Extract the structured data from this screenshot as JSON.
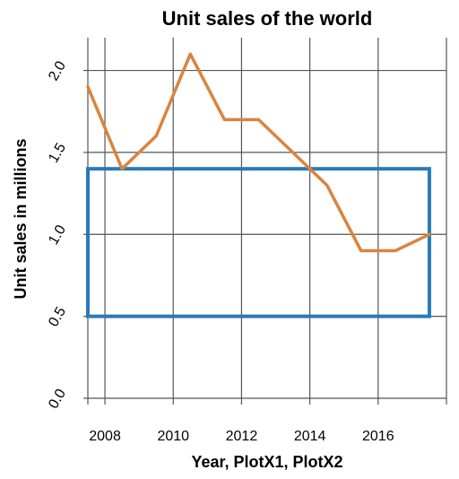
{
  "chart_data": {
    "type": "line",
    "title": "Unit sales of the world",
    "xlabel": "Year, PlotX1, PlotX2",
    "ylabel": "Unit sales in millions",
    "xlim": [
      2007.5,
      2018
    ],
    "ylim": [
      0,
      2.2
    ],
    "x_ticks": [
      2008,
      2010,
      2012,
      2014,
      2016
    ],
    "x_tick_labels": [
      "2008",
      "2010",
      "2012",
      "2014",
      "2016"
    ],
    "x_gridlines": [
      2008,
      2010,
      2012,
      2014,
      2016,
      2018
    ],
    "y_ticks": [
      0,
      0.5,
      1,
      1.5,
      2
    ],
    "y_tick_labels": [
      "0.0",
      "0.5",
      "1.0",
      "1.5",
      "2.0"
    ],
    "grid": true,
    "series": [
      {
        "x": [
          2007.5,
          2008.5,
          2009.5,
          2010.5,
          2011.5,
          2012.5,
          2013.5,
          2014.5,
          2015.5,
          2016.5,
          2017.5
        ],
        "values": [
          1.9,
          1.4,
          1.6,
          2.1,
          1.7,
          1.7,
          1.5,
          1.3,
          0.9,
          0.9,
          1.0
        ],
        "color": "#d9843f"
      }
    ],
    "annotations": [
      {
        "type": "rectangle",
        "x": [
          2007.5,
          2017.5
        ],
        "y": [
          0.5,
          1.4
        ],
        "color": "#2a7ab8"
      }
    ]
  }
}
